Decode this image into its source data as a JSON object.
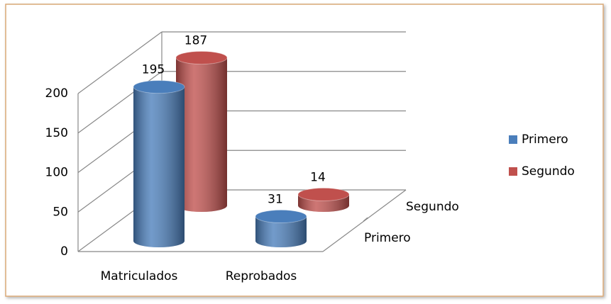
{
  "chart_data": {
    "type": "bar3d",
    "categories": [
      "Matriculados",
      "Reprobados"
    ],
    "series": [
      {
        "name": "Primero",
        "color": "#4a7ebb",
        "values": [
          195,
          31
        ]
      },
      {
        "name": "Segundo",
        "color": "#c0504d",
        "values": [
          187,
          14
        ]
      }
    ],
    "ylim": [
      0,
      200
    ],
    "yticks": [
      0,
      50,
      100,
      150,
      200
    ],
    "grid": true,
    "legend": "right"
  }
}
